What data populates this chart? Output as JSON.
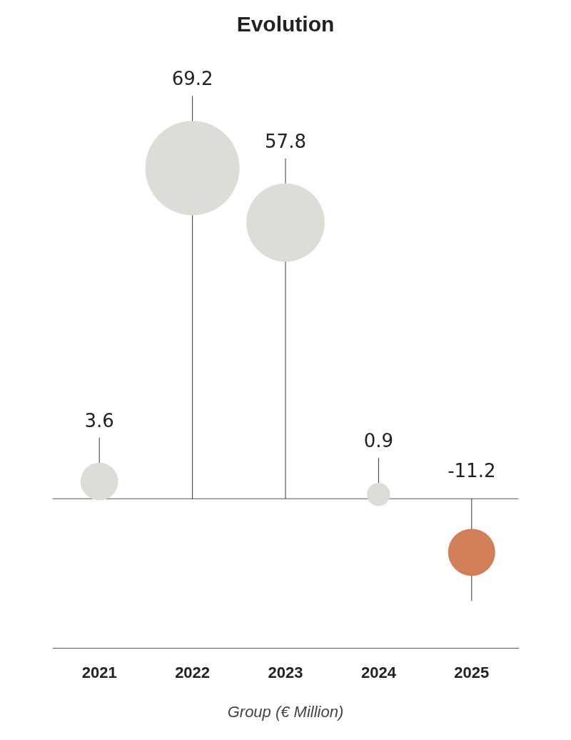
{
  "chart_data": {
    "type": "bubble",
    "title": "Evolution",
    "categories": [
      "2021",
      "2022",
      "2023",
      "2024",
      "2025"
    ],
    "values": [
      3.6,
      69.2,
      57.8,
      0.9,
      -11.2
    ],
    "sizes": [
      0.16,
      1,
      0.69,
      0.06,
      0.25
    ],
    "colors": [
      "#dddcd7",
      "#dddcd7",
      "#dddcd7",
      "#dddcd7",
      "#d17f58"
    ],
    "ref_lines": [
      {
        "axis": "y",
        "value": 0
      }
    ],
    "tick_labels": "x",
    "legend": false,
    "data_labels": true,
    "annotations": [
      "Group (€ Million)"
    ]
  }
}
